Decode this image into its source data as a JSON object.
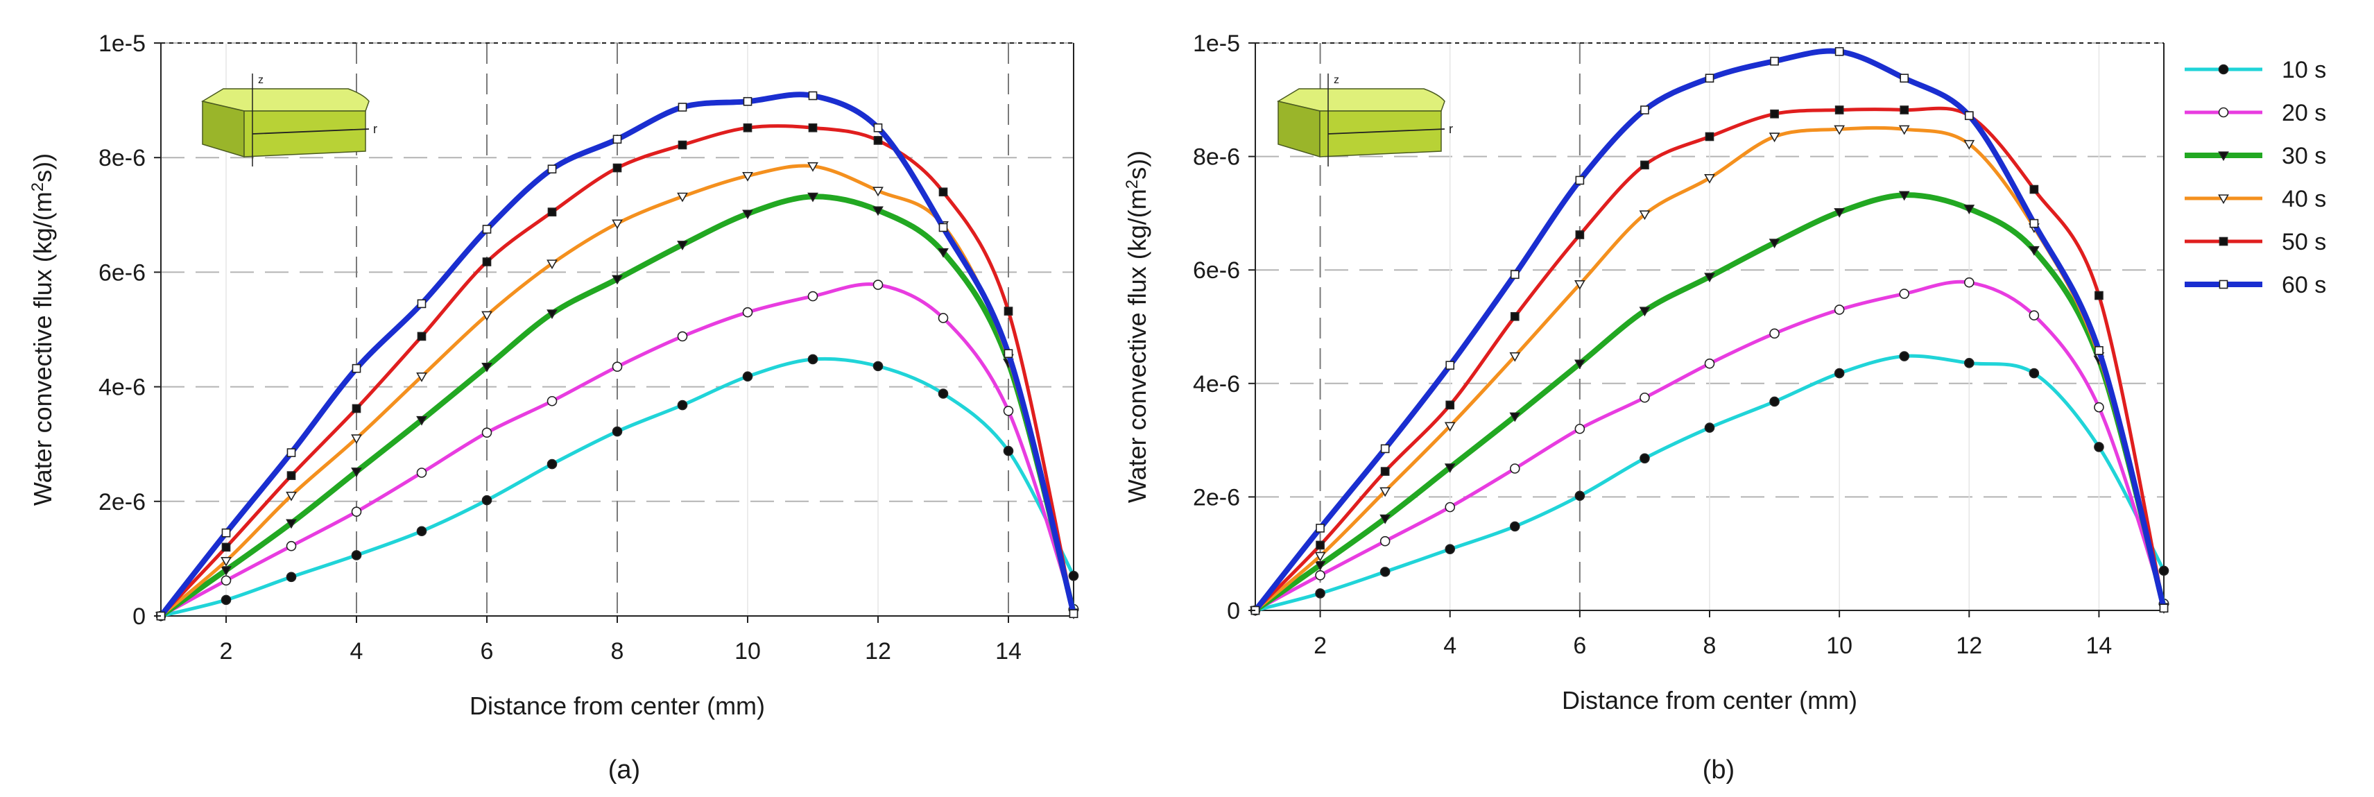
{
  "chart_data": [
    {
      "type": "line",
      "panel_label": "(a)",
      "xlabel": "Distance from center (mm)",
      "ylabel_prefix": "Water convective flux (kg/(m",
      "ylabel_sup": "2",
      "ylabel_suffix": "s))",
      "xlim": [
        1,
        15
      ],
      "ylim": [
        0,
        1e-05
      ],
      "x_ticks": [
        2,
        4,
        6,
        8,
        10,
        12,
        14
      ],
      "y_ticks": [
        {
          "value": 0,
          "label": "0"
        },
        {
          "value": 2e-06,
          "label": "2e-6"
        },
        {
          "value": 4e-06,
          "label": "4e-6"
        },
        {
          "value": 6e-06,
          "label": "6e-6"
        },
        {
          "value": 8e-06,
          "label": "8e-6"
        },
        {
          "value": 1e-05,
          "label": "1e-5"
        }
      ],
      "vertical_dashed_lines": [
        4,
        6,
        8,
        14
      ],
      "inset": {
        "z_label": "z",
        "r_label": "r"
      },
      "x": [
        1,
        2,
        3,
        4,
        5,
        6,
        7,
        8,
        9,
        10,
        11,
        12,
        13,
        14,
        15
      ],
      "series": [
        {
          "name": "10 s",
          "values": [
            0,
            2.8e-07,
            6.8e-07,
            1.06e-06,
            1.48e-06,
            2.02e-06,
            2.65e-06,
            3.22e-06,
            3.68e-06,
            4.18e-06,
            4.48e-06,
            4.36e-06,
            3.88e-06,
            2.88e-06,
            7e-07
          ]
        },
        {
          "name": "20 s",
          "values": [
            0,
            6.2e-07,
            1.22e-06,
            1.82e-06,
            2.5e-06,
            3.2e-06,
            3.75e-06,
            4.35e-06,
            4.88e-06,
            5.3e-06,
            5.58e-06,
            5.78e-06,
            5.2e-06,
            3.58e-06,
            1.2e-07
          ]
        },
        {
          "name": "30 s",
          "values": [
            0,
            8e-07,
            1.62e-06,
            2.52e-06,
            3.42e-06,
            4.35e-06,
            5.28e-06,
            5.88e-06,
            6.48e-06,
            7.02e-06,
            7.32e-06,
            7.08e-06,
            6.35e-06,
            4.42e-06,
            6e-08
          ]
        },
        {
          "name": "40 s",
          "values": [
            0,
            9.6e-07,
            2.1e-06,
            3.1e-06,
            4.18e-06,
            5.25e-06,
            6.15e-06,
            6.85e-06,
            7.32e-06,
            7.68e-06,
            7.85e-06,
            7.42e-06,
            6.82e-06,
            4.5e-06,
            4e-08
          ]
        },
        {
          "name": "50 s",
          "values": [
            0,
            1.2e-06,
            2.45e-06,
            3.62e-06,
            4.88e-06,
            6.18e-06,
            7.05e-06,
            7.82e-06,
            8.22e-06,
            8.52e-06,
            8.52e-06,
            8.3e-06,
            7.4e-06,
            5.32e-06,
            4e-08
          ]
        },
        {
          "name": "60 s",
          "values": [
            0,
            1.45e-06,
            2.85e-06,
            4.32e-06,
            5.45e-06,
            6.75e-06,
            7.8e-06,
            8.32e-06,
            8.88e-06,
            8.98e-06,
            9.08e-06,
            8.52e-06,
            6.78e-06,
            4.58e-06,
            4e-08
          ]
        }
      ]
    },
    {
      "type": "line",
      "panel_label": "(b)",
      "xlabel": "Distance from center (mm)",
      "ylabel_prefix": "Water convective flux (kg/(m",
      "ylabel_sup": "2",
      "ylabel_suffix": "s))",
      "xlim": [
        1,
        15
      ],
      "ylim": [
        0,
        1e-05
      ],
      "x_ticks": [
        2,
        4,
        6,
        8,
        10,
        12,
        14
      ],
      "y_ticks": [
        {
          "value": 0,
          "label": "0"
        },
        {
          "value": 2e-06,
          "label": "2e-6"
        },
        {
          "value": 4e-06,
          "label": "4e-6"
        },
        {
          "value": 6e-06,
          "label": "6e-6"
        },
        {
          "value": 8e-06,
          "label": "8e-6"
        },
        {
          "value": 1e-05,
          "label": "1e-5"
        }
      ],
      "vertical_dashed_lines": [
        2,
        6
      ],
      "inset": {
        "z_label": "z",
        "r_label": "r"
      },
      "legend_position": "right",
      "x": [
        1,
        2,
        3,
        4,
        5,
        6,
        7,
        8,
        9,
        10,
        11,
        12,
        13,
        14,
        15
      ],
      "series": [
        {
          "name": "10 s",
          "values": [
            0,
            3e-07,
            6.8e-07,
            1.08e-06,
            1.48e-06,
            2.02e-06,
            2.68e-06,
            3.22e-06,
            3.68e-06,
            4.18e-06,
            4.48e-06,
            4.36e-06,
            4.18e-06,
            2.88e-06,
            7e-07
          ]
        },
        {
          "name": "20 s",
          "values": [
            0,
            6.2e-07,
            1.22e-06,
            1.82e-06,
            2.5e-06,
            3.2e-06,
            3.75e-06,
            4.35e-06,
            4.88e-06,
            5.3e-06,
            5.58e-06,
            5.78e-06,
            5.2e-06,
            3.58e-06,
            1.2e-07
          ]
        },
        {
          "name": "30 s",
          "values": [
            0,
            8e-07,
            1.62e-06,
            2.52e-06,
            3.42e-06,
            4.35e-06,
            5.28e-06,
            5.88e-06,
            6.48e-06,
            7.02e-06,
            7.32e-06,
            7.08e-06,
            6.35e-06,
            4.42e-06,
            6e-08
          ]
        },
        {
          "name": "40 s",
          "values": [
            0,
            9.6e-07,
            2.1e-06,
            3.25e-06,
            4.48e-06,
            5.75e-06,
            6.98e-06,
            7.62e-06,
            8.35e-06,
            8.48e-06,
            8.48e-06,
            8.22e-06,
            6.75e-06,
            4.48e-06,
            4e-08
          ]
        },
        {
          "name": "50 s",
          "values": [
            0,
            1.15e-06,
            2.45e-06,
            3.62e-06,
            5.18e-06,
            6.62e-06,
            7.85e-06,
            8.35e-06,
            8.75e-06,
            8.82e-06,
            8.82e-06,
            8.72e-06,
            7.42e-06,
            5.55e-06,
            4e-08
          ]
        },
        {
          "name": "60 s",
          "values": [
            0,
            1.45e-06,
            2.85e-06,
            4.32e-06,
            5.92e-06,
            7.58e-06,
            8.82e-06,
            9.38e-06,
            9.68e-06,
            9.85e-06,
            9.38e-06,
            8.72e-06,
            6.82e-06,
            4.58e-06,
            4e-08
          ]
        }
      ]
    }
  ],
  "series_colors": [
    "#20d4d8",
    "#e83ce0",
    "#22a822",
    "#f4901e",
    "#e01e1e",
    "#1a2ed0"
  ],
  "series_markers": [
    "filled-circle",
    "open-circle",
    "down-triangle",
    "open-down-triangle",
    "filled-square",
    "open-square"
  ]
}
